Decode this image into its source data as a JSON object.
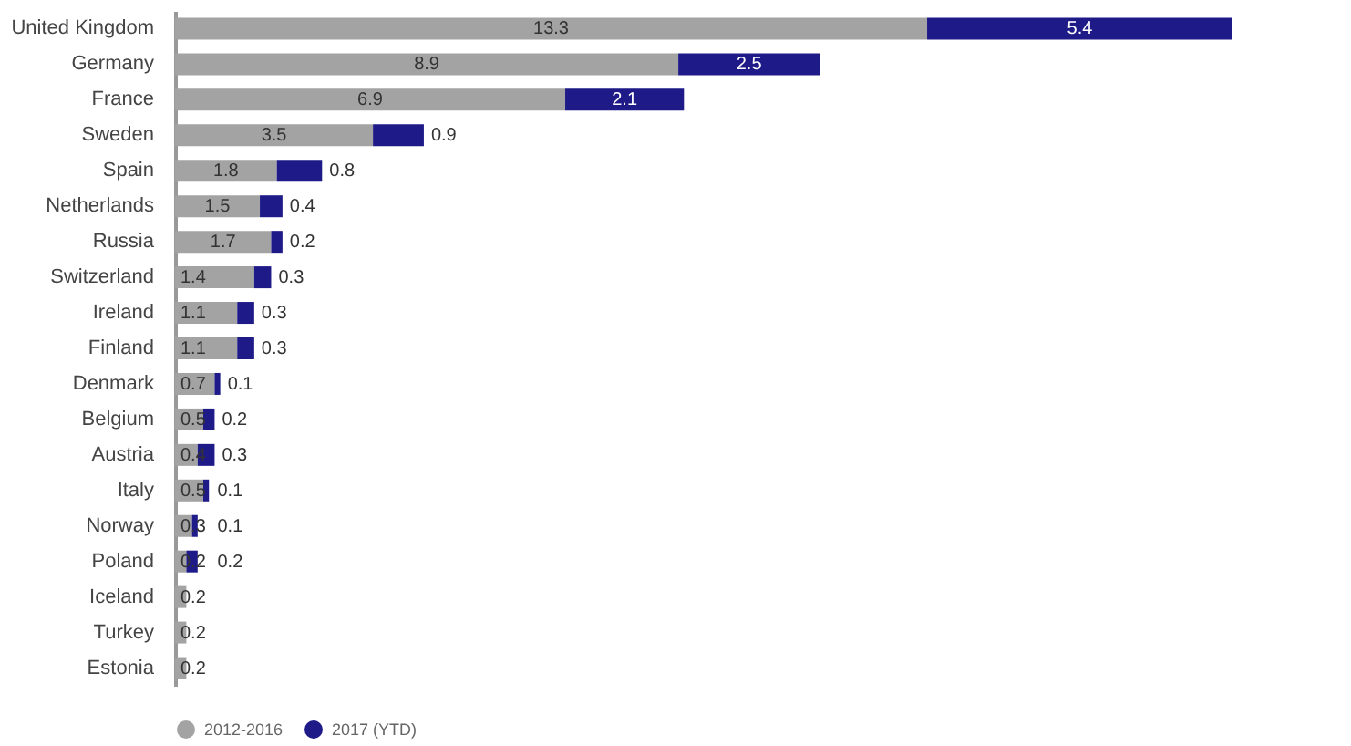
{
  "chart_data": {
    "type": "bar",
    "orientation": "horizontal",
    "stacked": true,
    "data_labels": true,
    "legend": "bottom",
    "categories": [
      "United Kingdom",
      "Germany",
      "France",
      "Sweden",
      "Spain",
      "Netherlands",
      "Russia",
      "Switzerland",
      "Ireland",
      "Finland",
      "Denmark",
      "Belgium",
      "Austria",
      "Italy",
      "Norway",
      "Poland",
      "Iceland",
      "Turkey",
      "Estonia"
    ],
    "series": [
      {
        "name": "2012-2016",
        "color": "#a3a3a3",
        "values": [
          13.3,
          8.9,
          6.9,
          3.5,
          1.8,
          1.5,
          1.7,
          1.4,
          1.1,
          1.1,
          0.7,
          0.5,
          0.4,
          0.5,
          0.3,
          0.2,
          0.2,
          0.2,
          0.2
        ]
      },
      {
        "name": "2017 (YTD)",
        "color": "#1e1a88",
        "values": [
          5.4,
          2.5,
          2.1,
          0.9,
          0.8,
          0.4,
          0.2,
          0.3,
          0.3,
          0.3,
          0.1,
          0.2,
          0.3,
          0.1,
          0.1,
          0.2,
          null,
          null,
          null
        ]
      }
    ]
  }
}
